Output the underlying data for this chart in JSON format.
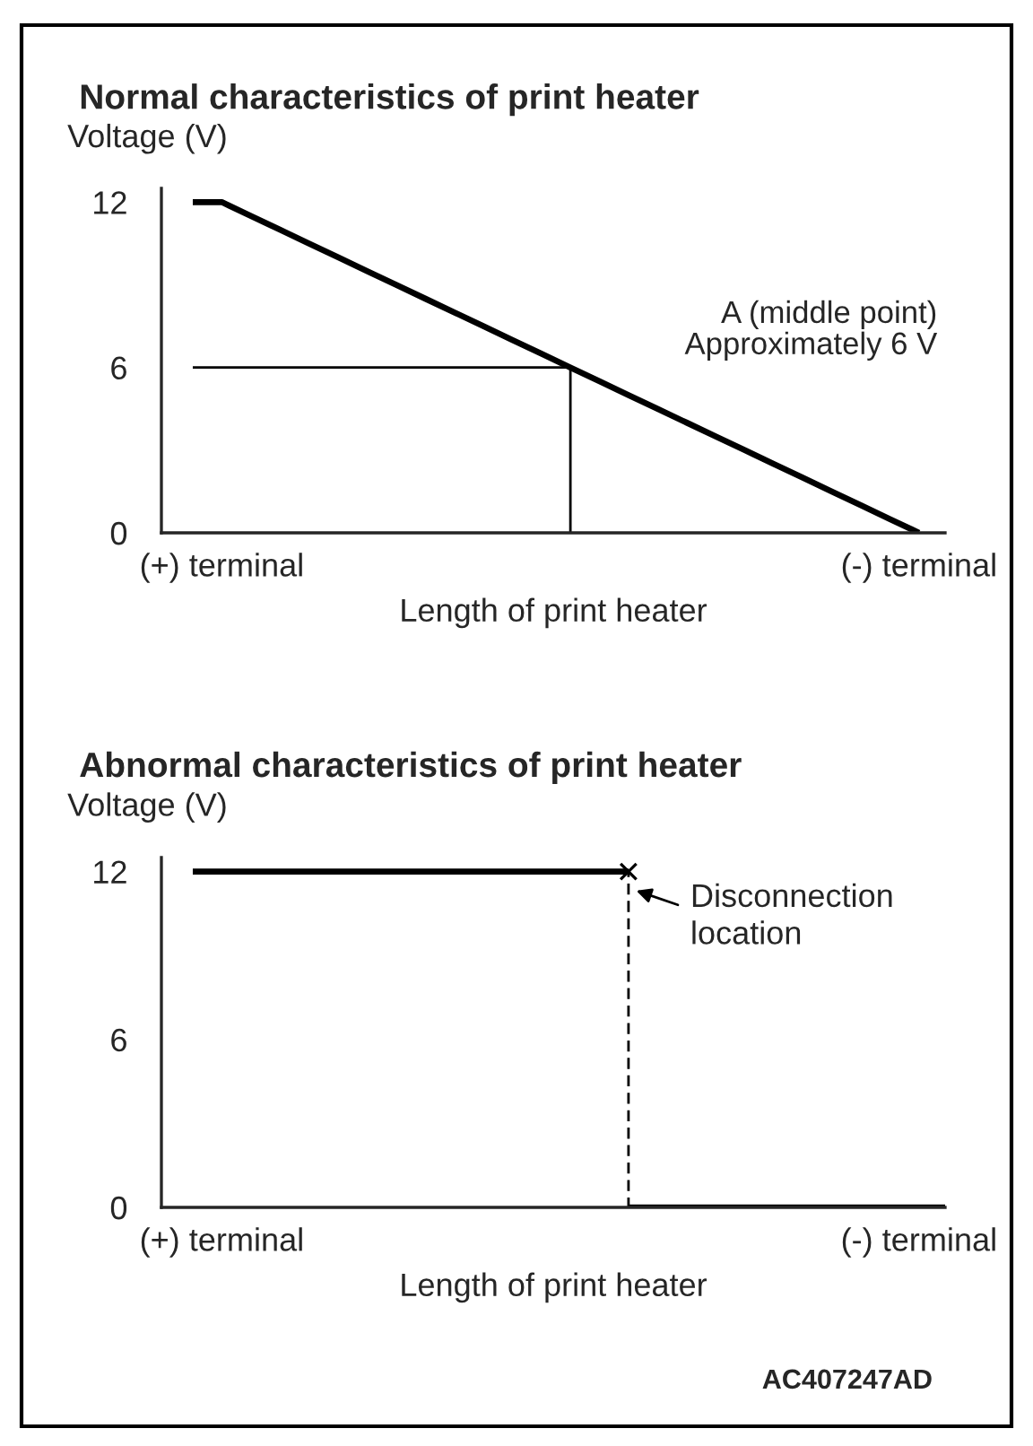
{
  "chart_data": [
    {
      "type": "line",
      "title": "Normal characteristics of print heater",
      "ylabel": "Voltage (V)",
      "xlabel": "Length of print heater",
      "categories": [
        null,
        "(+) terminal",
        null,
        null,
        null,
        null,
        null,
        null,
        null,
        null,
        null,
        null,
        null,
        null,
        null,
        null,
        null,
        null,
        null,
        null,
        null,
        null,
        null,
        null,
        null,
        "(-) terminal",
        null
      ],
      "series": [
        {
          "color": "#000000",
          "values": [
            12,
            12,
            11.5,
            11,
            10.5,
            10,
            9.5,
            9,
            8.5,
            8,
            7.5,
            7,
            6.5,
            6,
            5.5,
            5,
            4.5,
            4,
            3.5,
            3,
            2.5,
            2,
            1.5,
            1,
            0.5,
            0,
            null
          ]
        },
        {
          "color": "#000000",
          "values": [
            6,
            6,
            6,
            6,
            6,
            6,
            6,
            6,
            6,
            6,
            6,
            6,
            6,
            6,
            null,
            null,
            null,
            null,
            null,
            null,
            null,
            null,
            null,
            null,
            null,
            null,
            null
          ]
        },
        {
          "type": "bar",
          "color": "#000000",
          "values": [
            null,
            null,
            null,
            null,
            null,
            null,
            null,
            null,
            null,
            null,
            null,
            null,
            null,
            6,
            null,
            null,
            null,
            null,
            null,
            null,
            null,
            null,
            null,
            null,
            null,
            null,
            null
          ]
        }
      ],
      "annotations": [
        "A (middle point)\nApproximately 6 V"
      ],
      "ylim": [
        0,
        12.5
      ],
      "yticks": [
        0,
        6,
        12
      ],
      "grid": false,
      "legend": false
    },
    {
      "type": "line",
      "title": "Abnormal characteristics of print heater",
      "ylabel": "Voltage (V)",
      "xlabel": "Length of print heater",
      "categories": [
        null,
        "(+) terminal",
        null,
        null,
        null,
        null,
        null,
        null,
        null,
        null,
        null,
        null,
        null,
        null,
        null,
        null,
        null,
        null,
        null,
        null,
        null,
        null,
        null,
        null,
        null,
        "(-) terminal",
        null
      ],
      "series": [
        {
          "color": "#000000",
          "values": [
            12,
            12,
            12,
            12,
            12,
            12,
            12,
            12,
            12,
            12,
            12,
            12,
            12,
            12,
            12,
            12,
            null,
            null,
            null,
            null,
            null,
            null,
            null,
            null,
            null,
            null,
            null
          ]
        },
        {
          "color": "#000000",
          "values": [
            null,
            null,
            null,
            null,
            null,
            null,
            null,
            null,
            null,
            null,
            null,
            null,
            null,
            null,
            null,
            0,
            0,
            0,
            0,
            0,
            0,
            0,
            0,
            0,
            0,
            0,
            0
          ]
        },
        {
          "type": "bar",
          "color": "#000000",
          "line_style": "dashed",
          "values": [
            null,
            null,
            null,
            null,
            null,
            null,
            null,
            null,
            null,
            null,
            null,
            null,
            null,
            null,
            null,
            12,
            null,
            null,
            null,
            null,
            null,
            null,
            null,
            null,
            null,
            null,
            null
          ]
        },
        {
          "type": "scatter",
          "color": "#000000",
          "marker": "cross",
          "values": [
            null,
            null,
            null,
            null,
            null,
            null,
            null,
            null,
            null,
            null,
            null,
            null,
            null,
            null,
            null,
            12,
            null,
            null,
            null,
            null,
            null,
            null,
            null,
            null,
            null,
            null,
            null
          ]
        }
      ],
      "annotations": [
        "Disconnection\nlocation",
        "AC407247AD"
      ],
      "ylim": [
        0,
        12.5
      ],
      "yticks": [
        0,
        6,
        12
      ],
      "grid": false,
      "legend": false
    }
  ]
}
